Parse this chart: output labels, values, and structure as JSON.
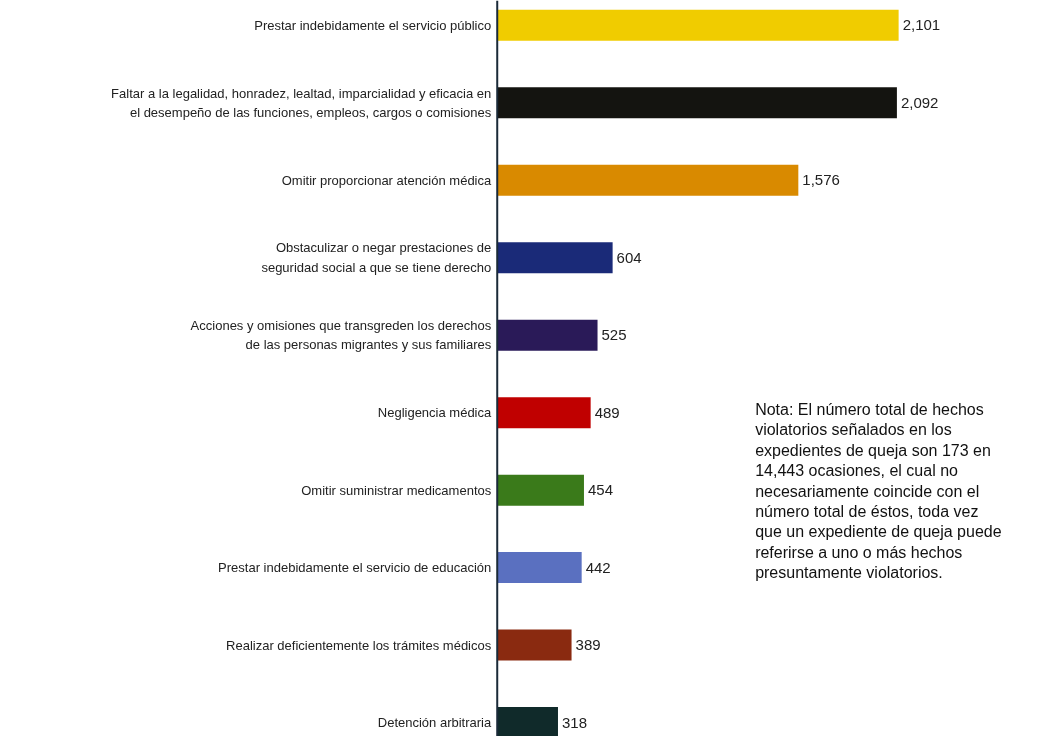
{
  "chart_data": {
    "type": "bar",
    "orientation": "horizontal",
    "data_labels": true,
    "tick_labels": "y",
    "categories": [
      "Prestar indebidamente el servicio público",
      "Faltar a la legalidad, honradez, lealtad, imparcialidad y eficacia en el desempeño de las funciones, empleos, cargos o comisiones",
      "Omitir proporcionar atención médica",
      "Obstaculizar o negar prestaciones de seguridad social a que se tiene derecho",
      "Acciones y omisiones que transgreden los derechos de las personas migrantes y sus familiares",
      "Negligencia médica",
      "Omitir suministrar medicamentos",
      "Prestar indebidamente el servicio de educación",
      "Realizar deficientemente los trámites médicos",
      "Detención arbitraria"
    ],
    "values": [
      2101,
      2092,
      1576,
      604,
      525,
      489,
      454,
      442,
      389,
      318
    ],
    "value_labels": [
      "2,101",
      "2,092",
      "1,576",
      "604",
      "525",
      "489",
      "454",
      "442",
      "389",
      "318"
    ],
    "colors": [
      "#f0cc00",
      "#141410",
      "#d98a00",
      "#1a2a78",
      "#2a1a58",
      "#c00000",
      "#3a7a1a",
      "#5a70c0",
      "#8a2a10",
      "#102a2a"
    ],
    "annotations": [
      "Nota: El número total de hechos violatorios señalados en los expedientes de queja son 173 en 14,443 ocasiones, el cual no necesariamente coincide con el número total de éstos, toda vez que un expediente de queja puede referirse a uno o más hechos presuntamente violatorios."
    ]
  }
}
